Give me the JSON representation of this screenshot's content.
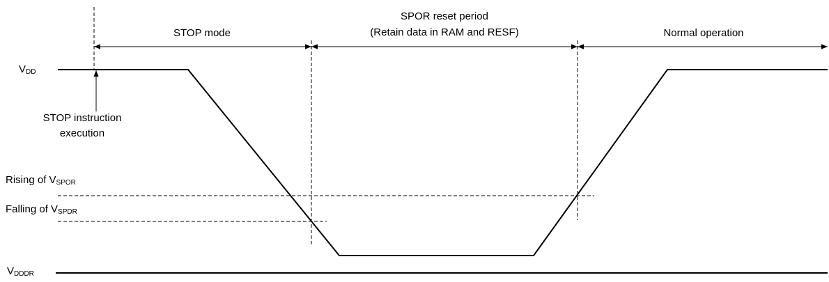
{
  "periods": {
    "stop_mode": "STOP mode",
    "spor_reset": [
      "SPOR reset period",
      "(Retain data in RAM and RESF)"
    ],
    "normal": "Normal operation"
  },
  "levels": {
    "vdd": {
      "main": "V",
      "sub": "DD"
    },
    "rising": {
      "main": "Rising of V",
      "sub": "SPOR"
    },
    "falling": {
      "main": "Falling of V",
      "sub": "SPDR"
    },
    "vdddr": {
      "main": "V",
      "sub": "DDDR"
    }
  },
  "event": [
    "STOP instruction",
    "execution"
  ]
}
